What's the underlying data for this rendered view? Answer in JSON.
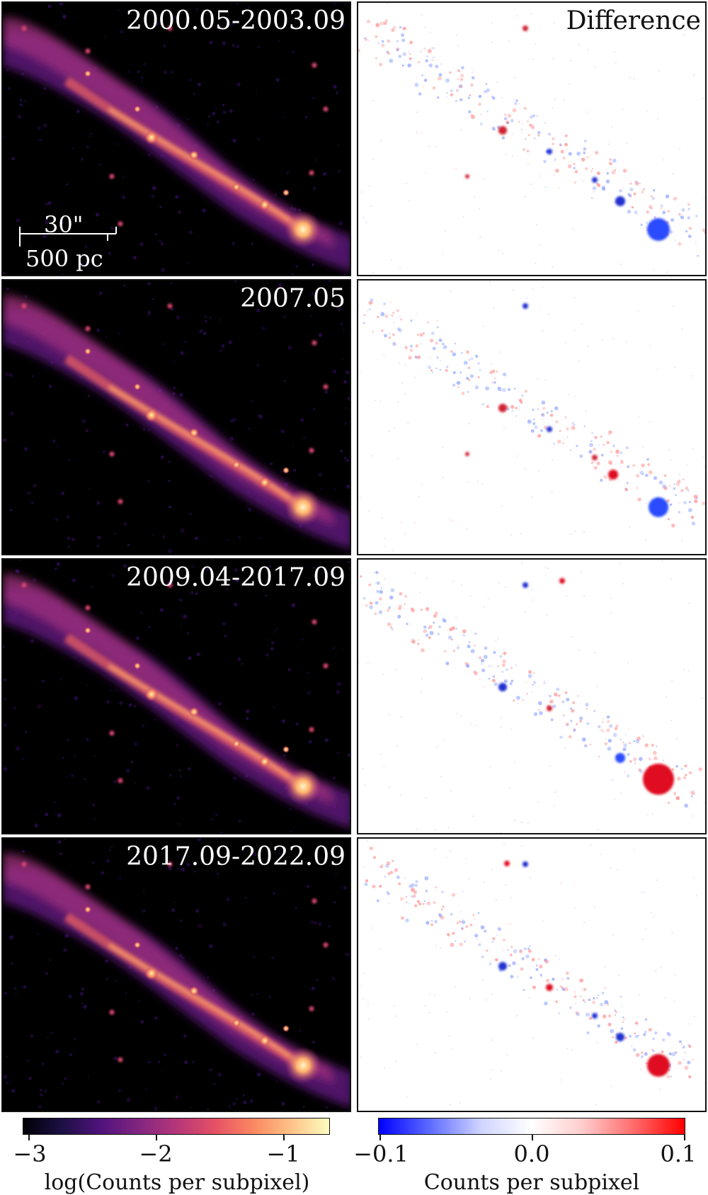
{
  "panels": [
    {
      "epoch": "2000.05-2003.09",
      "diff_label": "Difference"
    },
    {
      "epoch": "2007.05",
      "diff_label": ""
    },
    {
      "epoch": "2009.04-2017.09",
      "diff_label": ""
    },
    {
      "epoch": "2017.09-2022.09",
      "diff_label": ""
    }
  ],
  "scalebar": {
    "angular": "30\"",
    "physical": "500 pc"
  },
  "colorbar_left": {
    "ticks": [
      "−3",
      "−2",
      "−1"
    ],
    "label": "log(Counts per subpixel)",
    "colormap": "magma"
  },
  "colorbar_right": {
    "ticks": [
      "−0.1",
      "0.0",
      "0.1"
    ],
    "label": "Counts per subpixel",
    "colormap": "bwr"
  },
  "colors": {
    "positive": "#ff0000",
    "negative": "#0000ff",
    "background_left": "#000000",
    "background_right": "#ffffff"
  }
}
